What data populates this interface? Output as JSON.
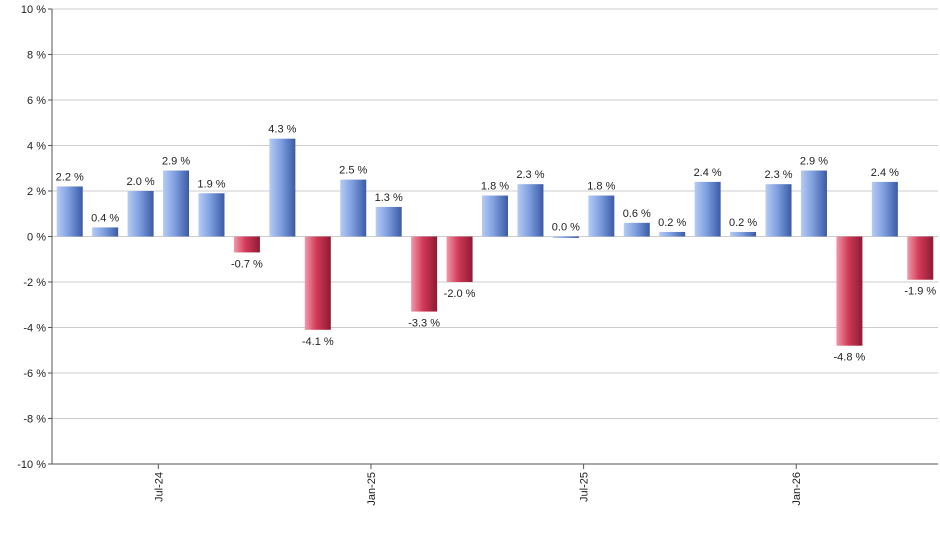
{
  "chart_data": {
    "type": "bar",
    "title": "",
    "xlabel": "",
    "ylabel": "",
    "ylim": [
      -10,
      10
    ],
    "yticks": [
      10,
      8,
      6,
      4,
      2,
      0,
      -2,
      -4,
      -6,
      -8,
      -10
    ],
    "ytick_labels": [
      "10 %",
      "8 %",
      "6 %",
      "4 %",
      "2 %",
      "0 %",
      "-2 %",
      "-4 %",
      "-6 %",
      "-8 %",
      "-10 %"
    ],
    "grid": true,
    "values": [
      2.2,
      0.4,
      2.0,
      2.9,
      1.9,
      -0.7,
      4.3,
      -4.1,
      2.5,
      1.3,
      -3.3,
      -2.0,
      1.8,
      2.3,
      0.0,
      1.8,
      0.6,
      0.2,
      2.4,
      0.2,
      2.3,
      2.9,
      -4.8,
      2.4,
      -1.9
    ],
    "data_labels": [
      "2.2 %",
      "0.4 %",
      "2.0 %",
      "2.9 %",
      "1.9 %",
      "-0.7 %",
      "4.3 %",
      "-4.1 %",
      "2.5 %",
      "1.3 %",
      "-3.3 %",
      "-2.0 %",
      "1.8 %",
      "2.3 %",
      "0.0 %",
      "1.8 %",
      "0.6 %",
      "0.2 %",
      "2.4 %",
      "0.2 %",
      "2.3 %",
      "2.9 %",
      "-4.8 %",
      "2.4 %",
      "-1.9 %"
    ],
    "x_ticks": [
      {
        "label": "Jul-24",
        "after_bar": 2
      },
      {
        "label": "Jan-25",
        "after_bar": 8
      },
      {
        "label": "Jul-25",
        "after_bar": 14
      },
      {
        "label": "Jan-26",
        "after_bar": 20
      }
    ],
    "colors": {
      "positive": "#7f9fe0",
      "negative": "#d23a58",
      "grid": "#cccccc",
      "axis": "#555555"
    }
  }
}
